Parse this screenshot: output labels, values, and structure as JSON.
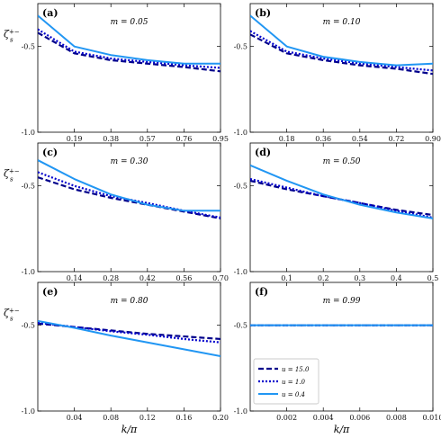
{
  "chart_data": {
    "type": "line",
    "series_styles": [
      {
        "name": "u = 15.0",
        "color": "#00008b",
        "dash": "6,3",
        "width": 2.2
      },
      {
        "name": "u = 1.0",
        "color": "#0000cd",
        "dash": "2,2",
        "width": 2.2
      },
      {
        "name": "u = 0.4",
        "color": "#2196f3",
        "dash": "",
        "width": 2.0
      }
    ],
    "legend": {
      "location": "lower-left",
      "panel": "f",
      "entries": [
        "u = 15.0",
        "u = 1.0",
        "u = 0.4"
      ]
    },
    "xlabel": "k/π",
    "ylabel_main": "ζ",
    "ylabel_sub": "s",
    "ylabel_sup": "+−",
    "panels": [
      {
        "tag": "(a)",
        "m_label": "m = 0.05",
        "xlim": [
          0,
          0.95
        ],
        "ylim": [
          -1.0,
          -0.25
        ],
        "xticks": [
          "0.19",
          "0.38",
          "0.57",
          "0.76",
          "0.95"
        ],
        "yticks": [
          "-0.5",
          "-1.0"
        ],
        "x": [
          0.0,
          0.19,
          0.38,
          0.57,
          0.76,
          0.95
        ],
        "series": [
          {
            "name": "u = 15.0",
            "values": [
              -0.42,
              -0.54,
              -0.58,
              -0.6,
              -0.62,
              -0.645
            ]
          },
          {
            "name": "u = 1.0",
            "values": [
              -0.4,
              -0.53,
              -0.57,
              -0.59,
              -0.61,
              -0.625
            ]
          },
          {
            "name": "u = 0.4",
            "values": [
              -0.32,
              -0.5,
              -0.55,
              -0.58,
              -0.6,
              -0.6
            ]
          }
        ]
      },
      {
        "tag": "(b)",
        "m_label": "m = 0.10",
        "xlim": [
          0,
          0.9
        ],
        "ylim": [
          -1.0,
          -0.25
        ],
        "xticks": [
          "0.18",
          "0.36",
          "0.54",
          "0.72",
          "0.90"
        ],
        "yticks": [
          "-0.5",
          "-1.0"
        ],
        "x": [
          0.0,
          0.18,
          0.36,
          0.54,
          0.72,
          0.9
        ],
        "series": [
          {
            "name": "u = 15.0",
            "values": [
              -0.43,
              -0.54,
              -0.58,
              -0.61,
              -0.63,
              -0.66
            ]
          },
          {
            "name": "u = 1.0",
            "values": [
              -0.41,
              -0.53,
              -0.57,
              -0.6,
              -0.62,
              -0.64
            ]
          },
          {
            "name": "u = 0.4",
            "values": [
              -0.32,
              -0.5,
              -0.56,
              -0.59,
              -0.61,
              -0.6
            ]
          }
        ]
      },
      {
        "tag": "(c)",
        "m_label": "m = 0.30",
        "xlim": [
          0,
          0.7
        ],
        "ylim": [
          -1.0,
          -0.25
        ],
        "xticks": [
          "0.14",
          "0.28",
          "0.42",
          "0.56",
          "0.70"
        ],
        "yticks": [
          "-0.5",
          "-1.0"
        ],
        "x": [
          0.0,
          0.14,
          0.28,
          0.42,
          0.56,
          0.7
        ],
        "series": [
          {
            "name": "u = 15.0",
            "values": [
              -0.45,
              -0.52,
              -0.57,
              -0.61,
              -0.65,
              -0.69
            ]
          },
          {
            "name": "u = 1.0",
            "values": [
              -0.42,
              -0.5,
              -0.56,
              -0.6,
              -0.645,
              -0.685
            ]
          },
          {
            "name": "u = 0.4",
            "values": [
              -0.35,
              -0.46,
              -0.55,
              -0.61,
              -0.645,
              -0.645
            ]
          }
        ]
      },
      {
        "tag": "(d)",
        "m_label": "m = 0.50",
        "xlim": [
          0,
          0.5
        ],
        "ylim": [
          -1.0,
          -0.25
        ],
        "xticks": [
          "0.1",
          "0.2",
          "0.3",
          "0.4",
          "0.5"
        ],
        "yticks": [
          "-0.5",
          "-1.0"
        ],
        "x": [
          0.0,
          0.1,
          0.2,
          0.3,
          0.4,
          0.5
        ],
        "series": [
          {
            "name": "u = 15.0",
            "values": [
              -0.47,
              -0.52,
              -0.56,
              -0.6,
              -0.64,
              -0.67
            ]
          },
          {
            "name": "u = 1.0",
            "values": [
              -0.46,
              -0.51,
              -0.56,
              -0.6,
              -0.645,
              -0.685
            ]
          },
          {
            "name": "u = 0.4",
            "values": [
              -0.38,
              -0.47,
              -0.55,
              -0.61,
              -0.655,
              -0.69
            ]
          }
        ]
      },
      {
        "tag": "(e)",
        "m_label": "m = 0.80",
        "xlim": [
          0,
          0.2
        ],
        "ylim": [
          -1.0,
          -0.25
        ],
        "xticks": [
          "0.04",
          "0.08",
          "0.12",
          "0.16",
          "0.20"
        ],
        "yticks": [
          "-0.5",
          "-1.0"
        ],
        "x": [
          0.0,
          0.04,
          0.08,
          0.12,
          0.16,
          0.2
        ],
        "series": [
          {
            "name": "u = 15.0",
            "values": [
              -0.49,
              -0.51,
              -0.53,
              -0.55,
              -0.565,
              -0.58
            ]
          },
          {
            "name": "u = 1.0",
            "values": [
              -0.485,
              -0.51,
              -0.535,
              -0.555,
              -0.58,
              -0.6
            ]
          },
          {
            "name": "u = 0.4",
            "values": [
              -0.475,
              -0.515,
              -0.56,
              -0.6,
              -0.64,
              -0.68
            ]
          }
        ]
      },
      {
        "tag": "(f)",
        "m_label": "m = 0.99",
        "xlim": [
          0,
          0.01
        ],
        "ylim": [
          -1.0,
          -0.25
        ],
        "xticks": [
          "0.002",
          "0.004",
          "0.006",
          "0.008",
          "0.010"
        ],
        "yticks": [
          "-0.5",
          "-1.0"
        ],
        "x": [
          0.0,
          0.002,
          0.004,
          0.006,
          0.008,
          0.01
        ],
        "series": [
          {
            "name": "u = 15.0",
            "values": [
              -0.5,
              -0.5,
              -0.5,
              -0.5,
              -0.5,
              -0.5
            ]
          },
          {
            "name": "u = 1.0",
            "values": [
              -0.5,
              -0.5,
              -0.5,
              -0.5,
              -0.5,
              -0.5
            ]
          },
          {
            "name": "u = 0.4",
            "values": [
              -0.5,
              -0.5,
              -0.5,
              -0.5,
              -0.5,
              -0.5
            ]
          }
        ]
      }
    ]
  }
}
